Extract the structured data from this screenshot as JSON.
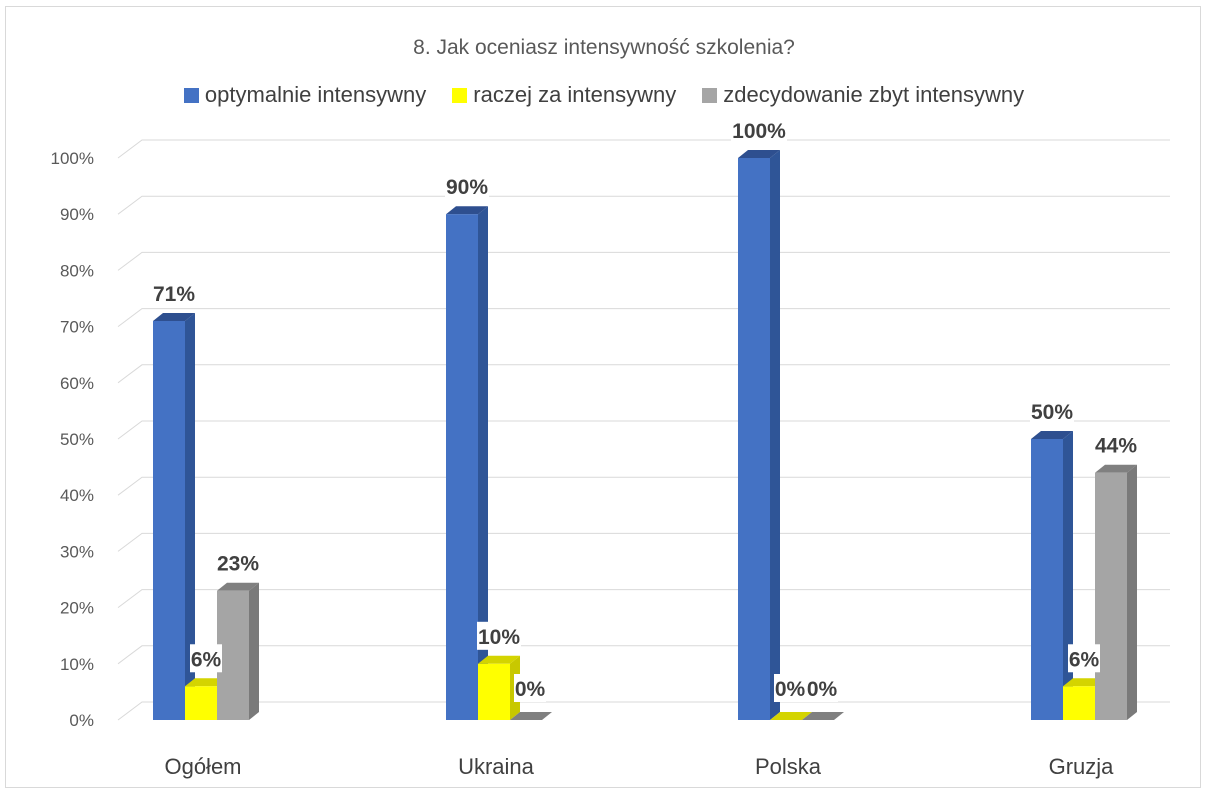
{
  "chart_data": {
    "type": "bar",
    "title": "8. Jak oceniasz intensywność szkolenia?",
    "categories": [
      "Ogółem",
      "Ukraina",
      "Polska",
      "Gruzja"
    ],
    "series": [
      {
        "name": "optymalnie intensywny",
        "values": [
          71,
          90,
          100,
          50
        ],
        "labels": [
          "71%",
          "90%",
          "100%",
          "50%"
        ],
        "color": "#4472c4",
        "side": "#2f5597",
        "top": "#2e4f8f"
      },
      {
        "name": "raczej za intensywny",
        "values": [
          6,
          10,
          0,
          6
        ],
        "labels": [
          "6%",
          "10%",
          "0%",
          "6%"
        ],
        "color": "#ffff00",
        "side": "#c8c800",
        "top": "#d4d400"
      },
      {
        "name": "zdecydowanie zbyt intensywny",
        "values": [
          23,
          0,
          0,
          44
        ],
        "labels": [
          "23%",
          "0%",
          "0%",
          "44%"
        ],
        "color": "#a5a5a5",
        "side": "#7a7a7a",
        "top": "#808080"
      }
    ],
    "yticks": [
      "0%",
      "10%",
      "20%",
      "30%",
      "40%",
      "50%",
      "60%",
      "70%",
      "80%",
      "90%",
      "100%"
    ],
    "ylim": [
      0,
      100
    ],
    "grid": true,
    "legend_position": "top"
  }
}
